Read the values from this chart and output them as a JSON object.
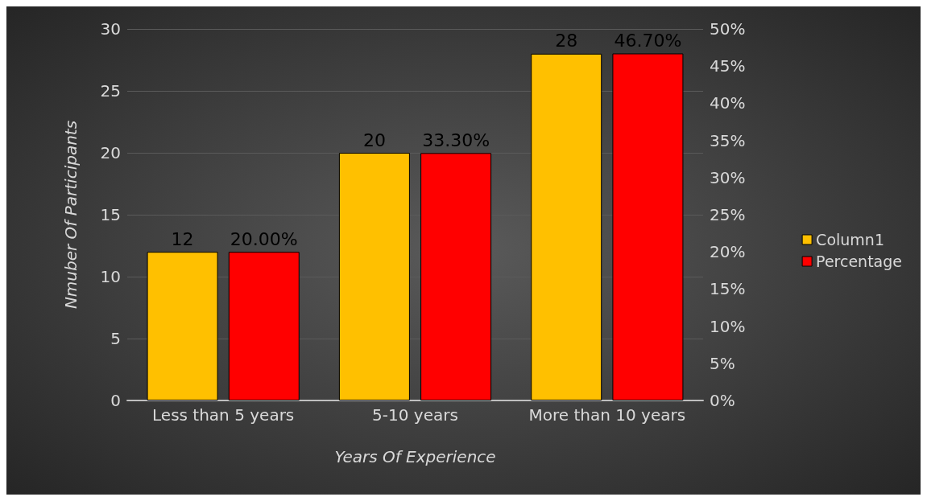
{
  "chart_data": {
    "type": "bar",
    "xlabel": "Years Of Experience",
    "ylabel": "Nmuber Of Participants",
    "categories": [
      "Less than 5 years",
      "5-10 years",
      "More than 10 years"
    ],
    "series": [
      {
        "name": "Column1",
        "color": "#ffc000",
        "values": [
          12,
          20,
          28
        ],
        "value_labels": [
          "12",
          "20",
          "28"
        ]
      },
      {
        "name": "Percentage",
        "color": "#ff0000",
        "axis": "y2",
        "values": [
          20,
          33.3,
          46.7
        ],
        "value_labels": [
          "20.00%",
          "33.30%",
          "46.70%"
        ]
      }
    ],
    "ylim": [
      0,
      30
    ],
    "yticks": [
      0,
      5,
      10,
      15,
      20,
      25,
      30
    ],
    "y2lim": [
      0,
      50
    ],
    "y2ticks": [
      {
        "value": 0,
        "label": "0%"
      },
      {
        "value": 5,
        "label": "5%"
      },
      {
        "value": 10,
        "label": "10%"
      },
      {
        "value": 15,
        "label": "15%"
      },
      {
        "value": 20,
        "label": "20%"
      },
      {
        "value": 25,
        "label": "25%"
      },
      {
        "value": 30,
        "label": "30%"
      },
      {
        "value": 35,
        "label": "35%"
      },
      {
        "value": 40,
        "label": "40%"
      },
      {
        "value": 45,
        "label": "45%"
      },
      {
        "value": 50,
        "label": "50%"
      }
    ],
    "grid": "y",
    "legend": "right"
  }
}
